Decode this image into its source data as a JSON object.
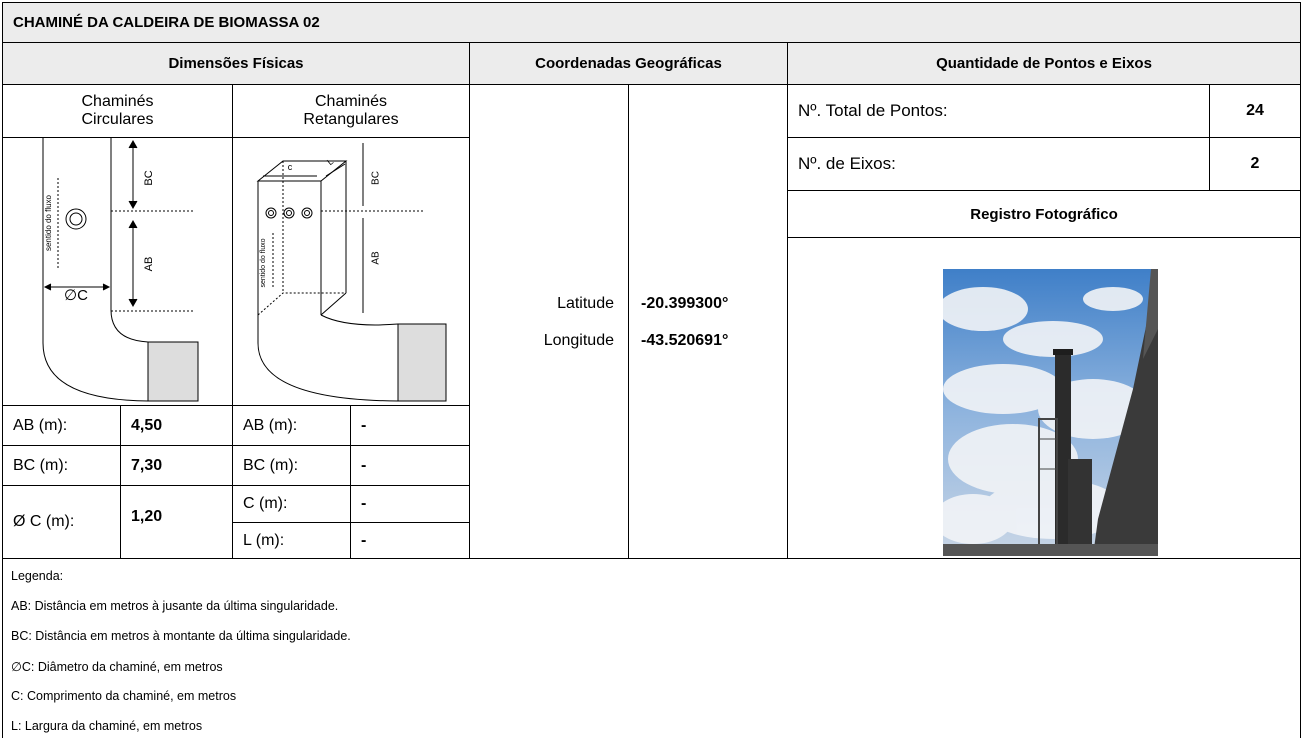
{
  "title": "CHAMINÉ DA CALDEIRA DE BIOMASSA 02",
  "headers": {
    "dimensions": "Dimensões Físicas",
    "coordinates": "Coordenadas Geográficas",
    "points": "Quantidade de Pontos e Eixos"
  },
  "circular": {
    "label": "Chaminés Circulares",
    "diagram": {
      "bc": "BC",
      "ab": "AB",
      "diameter": "∅C",
      "flow": "sentido do fluxo"
    },
    "rows": [
      [
        "AB (m):",
        "4,50"
      ],
      [
        "BC (m):",
        "7,30"
      ],
      [
        "Ø C (m):",
        "1,20"
      ]
    ]
  },
  "rectangular": {
    "label": "Chaminés Retangulares",
    "diagram": {
      "c": "c",
      "l": "L",
      "bc": "BC",
      "ab": "AB",
      "flow": "sentido do fluxo"
    },
    "rows": [
      [
        "AB (m):",
        "-"
      ],
      [
        "BC (m):",
        "-"
      ],
      [
        "C (m):",
        "-"
      ],
      [
        "L (m):",
        "-"
      ]
    ]
  },
  "coordinates": [
    [
      "Latitude",
      "-20.399300°"
    ],
    [
      "Longitude",
      "-43.520691°"
    ]
  ],
  "points": {
    "total_label": "Nº. Total de Pontos:",
    "total": "24",
    "axes_label": "Nº. de Eixos:",
    "axes": "2",
    "photo_header": "Registro Fotográfico"
  },
  "legend": [
    "Legenda:",
    "AB: Distância em metros à jusante da última singularidade.",
    "BC: Distância em metros à montante da última singularidade.",
    "∅C: Diâmetro da chaminé, em metros",
    "C: Comprimento da chaminé, em metros",
    "L: Largura da chaminé, em metros"
  ]
}
